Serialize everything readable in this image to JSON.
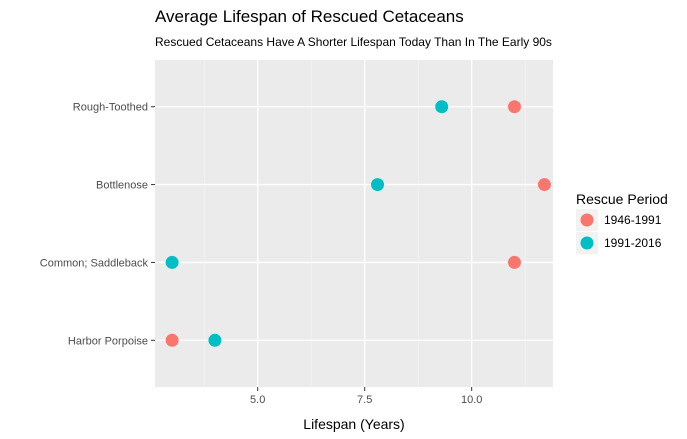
{
  "chart_data": {
    "type": "scatter",
    "title": "Average Lifespan of Rescued Cetaceans",
    "subtitle": "Rescued Cetaceans Have A Shorter Lifespan Today Than In The Early 90s",
    "xlabel": "Lifespan (Years)",
    "ylabel": "",
    "xlim": [
      2.6,
      11.9
    ],
    "x_ticks": [
      5.0,
      7.5,
      10.0
    ],
    "x_tick_labels": [
      "5.0",
      "7.5",
      "10.0"
    ],
    "categories": [
      "Rough-Toothed",
      "Bottlenose",
      "Common; Saddleback",
      "Harbor Porpoise"
    ],
    "legend": {
      "title": "Rescue Period",
      "position": "right"
    },
    "grid": true,
    "series": [
      {
        "name": "1946-1991",
        "color": "#F8766D",
        "values": [
          11.0,
          11.7,
          11.0,
          3.0
        ]
      },
      {
        "name": "1991-2016",
        "color": "#00BFC4",
        "values": [
          9.3,
          7.8,
          3.0,
          4.0
        ]
      }
    ]
  }
}
